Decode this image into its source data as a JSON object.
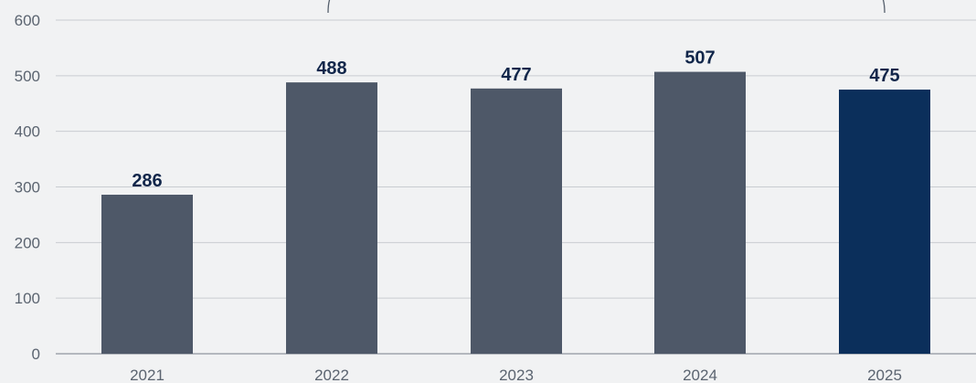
{
  "chart_data": {
    "type": "bar",
    "title": "",
    "xlabel": "",
    "ylabel": "",
    "categories": [
      "2021",
      "2022",
      "2023",
      "2024",
      "2025"
    ],
    "values": [
      286,
      488,
      477,
      507,
      475
    ],
    "value_labels": [
      "286",
      "488",
      "477",
      "507",
      "475"
    ],
    "ylim": [
      0,
      600
    ],
    "y_ticks": [
      "0",
      "100",
      "200",
      "300",
      "400",
      "500",
      "600"
    ],
    "grid": true,
    "colors": {
      "default_bar": "#4e5868",
      "highlight_bar": "#0b2f5b",
      "highlight_category": "2025",
      "background": "#f1f2f3"
    }
  }
}
